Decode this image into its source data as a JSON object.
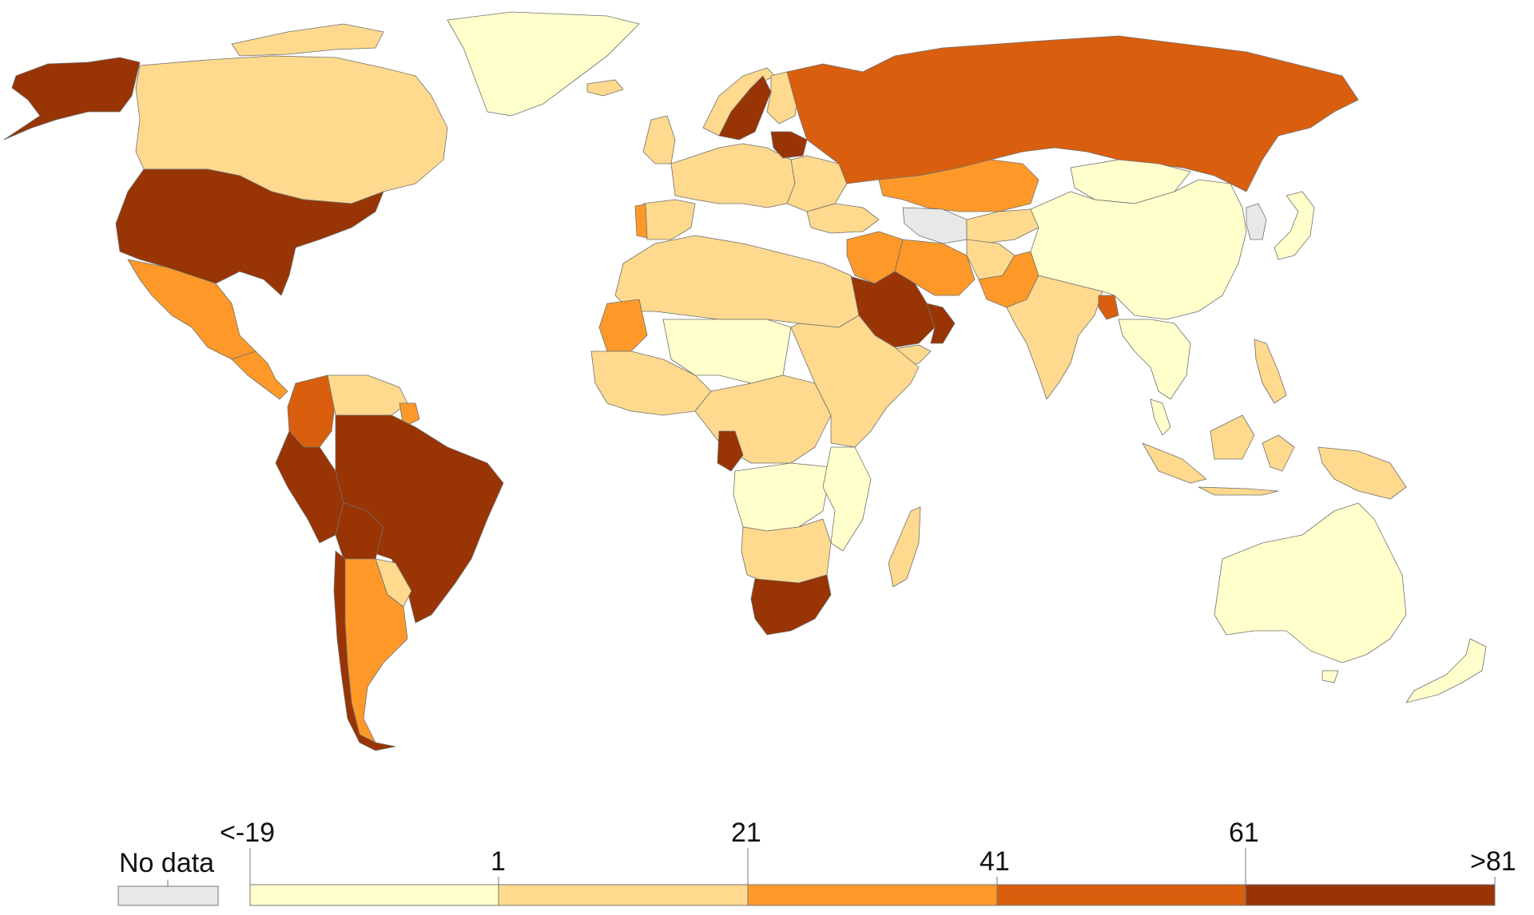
{
  "map": {
    "projection": "world choropleth",
    "region_classes": {
      "north-america": "cls-2",
      "greenland": "cls-1",
      "alaska": "cls-5",
      "usa": "cls-5",
      "mexico": "cls-3",
      "central-america": "cls-3",
      "colombia": "cls-4",
      "venezuela-guyana": "cls-2",
      "suriname-guiana": "cls-3",
      "peru": "cls-5",
      "brazil": "cls-5",
      "bolivia": "cls-5",
      "argentina": "cls-3",
      "chile": "cls-5",
      "uruguay-paraguay": "cls-2",
      "iceland": "cls-2",
      "uk-ireland": "cls-2",
      "iberia": "cls-2",
      "portugal": "cls-3",
      "western-europe": "cls-2",
      "norway": "cls-2",
      "sweden": "cls-5",
      "finland": "cls-2",
      "baltics-belarus": "cls-5",
      "eastern-europe": "cls-2",
      "russia": "cls-4",
      "kazakhstan": "cls-3",
      "central-asia-west": "cls-0",
      "central-asia-east": "cls-2",
      "turkey": "cls-2",
      "middle-east-north": "cls-3",
      "iran": "cls-3",
      "saudi-arabia": "cls-5",
      "oman": "cls-5",
      "yemen": "cls-2",
      "afghanistan": "cls-2",
      "pakistan": "cls-3",
      "india": "cls-2",
      "bangladesh": "cls-4",
      "china": "cls-1",
      "mongolia": "cls-1",
      "korea": "cls-0",
      "japan": "cls-1",
      "southeast-asia": "cls-1",
      "indonesia": "cls-2",
      "philippines": "cls-2",
      "png": "cls-2",
      "australia": "cls-1",
      "new-zealand": "cls-1",
      "north-africa": "cls-2",
      "mauritania": "cls-3",
      "west-africa": "cls-2",
      "sahel": "cls-1",
      "central-africa": "cls-2",
      "gabon": "cls-5",
      "congo-basin": "cls-1",
      "east-africa": "cls-2",
      "southern-africa": "cls-2",
      "south-africa": "cls-5",
      "madagascar": "cls-2",
      "mozambique": "cls-1"
    }
  },
  "legend": {
    "no_data_label": "No data",
    "upper_labels": [
      "<-19",
      "21",
      "61"
    ],
    "lower_labels": [
      "1",
      "41",
      ">81"
    ],
    "classes": [
      {
        "id": "cls-0",
        "label": "No data",
        "color": "#e8e8e8"
      },
      {
        "id": "cls-1",
        "range": "<-19 – 1",
        "color": "#ffffcc"
      },
      {
        "id": "cls-2",
        "range": "1 – 21",
        "color": "#fed98e"
      },
      {
        "id": "cls-3",
        "range": "21 – 41",
        "color": "#fe9929"
      },
      {
        "id": "cls-4",
        "range": "41 – 61",
        "color": "#d95f0e"
      },
      {
        "id": "cls-5",
        "range": "61 – >81",
        "color": "#993404"
      }
    ]
  }
}
